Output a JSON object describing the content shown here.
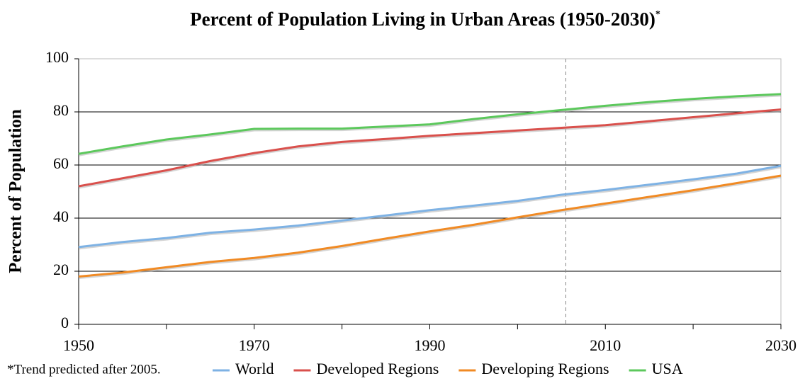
{
  "chart_data": {
    "type": "line",
    "title": "Percent of Population Living in Urban Areas (1950-2030)",
    "title_mark": "*",
    "ylabel": "Percent of Population",
    "footnote": "*Trend predicted after 2005.",
    "x": [
      1950,
      1955,
      1960,
      1965,
      1970,
      1975,
      1980,
      1985,
      1990,
      1995,
      2000,
      2005,
      2010,
      2015,
      2020,
      2025,
      2030
    ],
    "series": [
      {
        "name": "World",
        "color": "#7eb2e4",
        "values": [
          29.1,
          31,
          32.5,
          34.5,
          35.7,
          37.2,
          39.1,
          41,
          43,
          44.7,
          46.5,
          48.8,
          50.6,
          52.6,
          54.6,
          56.8,
          59.7
        ]
      },
      {
        "name": "Developed Regions",
        "color": "#d9504c",
        "values": [
          52,
          55,
          58,
          61.5,
          64.5,
          67,
          68.7,
          69.8,
          71,
          72,
          73,
          74,
          75,
          76.5,
          78,
          79.5,
          80.9
        ]
      },
      {
        "name": "Developing Regions",
        "color": "#f08a24",
        "values": [
          18,
          19.5,
          21.5,
          23.5,
          25,
          27,
          29.5,
          32.3,
          35,
          37.5,
          40.3,
          43,
          45.5,
          48,
          50.5,
          53.2,
          56
        ]
      },
      {
        "name": "USA",
        "color": "#5cc85c",
        "values": [
          64.2,
          67,
          69.6,
          71.5,
          73.6,
          73.7,
          73.7,
          74.5,
          75.3,
          77.3,
          79.1,
          80.7,
          82.3,
          83.7,
          84.9,
          85.9,
          86.7
        ]
      }
    ],
    "xlim": [
      1950,
      2030
    ],
    "xticks": [
      1950,
      1970,
      1990,
      2010,
      2030
    ],
    "xminor_ticks": [
      1960,
      1980,
      2000,
      2020
    ],
    "ylim": [
      0,
      100
    ],
    "yticks": [
      0,
      20,
      40,
      60,
      80,
      100
    ],
    "grid": true,
    "vline_x": 2005.5,
    "legend": "bottom"
  }
}
